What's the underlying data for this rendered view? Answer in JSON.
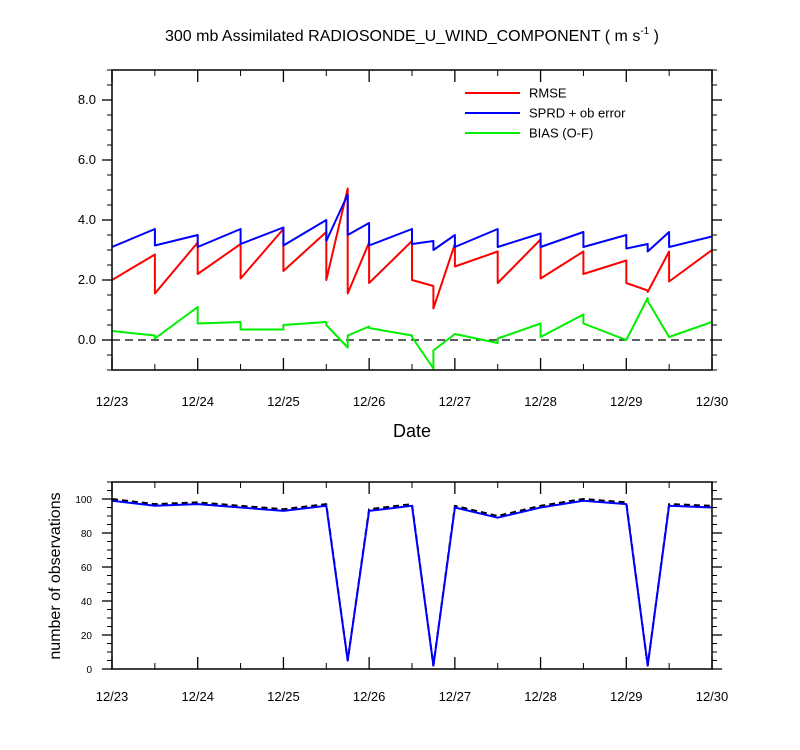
{
  "chart_data": [
    {
      "type": "line",
      "title": "300 mb Assimilated RADIOSONDE_U_WIND_COMPONENT ( m s",
      "title_sup": "-1",
      "title_end": " )",
      "xlabel": "Date",
      "ylabel": "",
      "xlim": [
        0,
        7
      ],
      "ylim": [
        -1.0,
        9.0
      ],
      "x_ticks": [
        0,
        1,
        2,
        3,
        4,
        5,
        6,
        7
      ],
      "x_tick_labels": [
        "12/23",
        "12/24",
        "12/25",
        "12/26",
        "12/27",
        "12/28",
        "12/29",
        "12/30"
      ],
      "y_ticks": [
        0,
        2,
        4,
        6,
        8
      ],
      "y_tick_labels": [
        "0.0",
        "2.0",
        "4.0",
        "6.0",
        "8.0"
      ],
      "zero_line": "dashed",
      "legend_position": "top-right",
      "series": [
        {
          "name": "RMSE",
          "color": "#ff0000",
          "points": [
            [
              0,
              2.0
            ],
            [
              0.5,
              2.85
            ],
            [
              0.5,
              1.55
            ],
            [
              1.0,
              3.25
            ],
            [
              1.0,
              2.2
            ],
            [
              1.5,
              3.2
            ],
            [
              1.5,
              2.05
            ],
            [
              2.0,
              3.7
            ],
            [
              2.0,
              2.3
            ],
            [
              2.5,
              3.6
            ],
            [
              2.5,
              2.0
            ],
            [
              2.75,
              5.05
            ],
            [
              2.75,
              1.55
            ],
            [
              3.0,
              3.25
            ],
            [
              3.0,
              1.9
            ],
            [
              3.5,
              3.3
            ],
            [
              3.5,
              2.0
            ],
            [
              3.75,
              1.8
            ],
            [
              3.75,
              1.05
            ],
            [
              4.0,
              3.2
            ],
            [
              4.0,
              2.45
            ],
            [
              4.5,
              2.95
            ],
            [
              4.5,
              1.9
            ],
            [
              5.0,
              3.35
            ],
            [
              5.0,
              2.05
            ],
            [
              5.5,
              2.95
            ],
            [
              5.5,
              2.2
            ],
            [
              6.0,
              2.65
            ],
            [
              6.0,
              1.9
            ],
            [
              6.25,
              1.65
            ],
            [
              6.25,
              1.6
            ],
            [
              6.5,
              2.95
            ],
            [
              6.5,
              1.95
            ],
            [
              7.0,
              3.0
            ]
          ]
        },
        {
          "name": "SPRD + ob error",
          "color": "#0000ff",
          "points": [
            [
              0,
              3.1
            ],
            [
              0.5,
              3.7
            ],
            [
              0.5,
              3.15
            ],
            [
              1.0,
              3.5
            ],
            [
              1.0,
              3.1
            ],
            [
              1.5,
              3.7
            ],
            [
              1.5,
              3.2
            ],
            [
              2.0,
              3.75
            ],
            [
              2.0,
              3.15
            ],
            [
              2.5,
              4.0
            ],
            [
              2.5,
              3.3
            ],
            [
              2.75,
              4.85
            ],
            [
              2.75,
              3.5
            ],
            [
              3.0,
              3.9
            ],
            [
              3.0,
              3.15
            ],
            [
              3.5,
              3.7
            ],
            [
              3.5,
              3.2
            ],
            [
              3.75,
              3.3
            ],
            [
              3.75,
              3.0
            ],
            [
              4.0,
              3.5
            ],
            [
              4.0,
              3.1
            ],
            [
              4.5,
              3.7
            ],
            [
              4.5,
              3.1
            ],
            [
              5.0,
              3.55
            ],
            [
              5.0,
              3.1
            ],
            [
              5.5,
              3.6
            ],
            [
              5.5,
              3.1
            ],
            [
              6.0,
              3.5
            ],
            [
              6.0,
              3.05
            ],
            [
              6.25,
              3.2
            ],
            [
              6.25,
              2.95
            ],
            [
              6.5,
              3.6
            ],
            [
              6.5,
              3.1
            ],
            [
              7.0,
              3.45
            ]
          ]
        },
        {
          "name": "BIAS (O-F)",
          "color": "#00ee00",
          "points": [
            [
              0,
              0.3
            ],
            [
              0.5,
              0.15
            ],
            [
              0.5,
              0.05
            ],
            [
              1.0,
              1.1
            ],
            [
              1.0,
              0.55
            ],
            [
              1.5,
              0.6
            ],
            [
              1.5,
              0.35
            ],
            [
              2.0,
              0.35
            ],
            [
              2.0,
              0.5
            ],
            [
              2.5,
              0.6
            ],
            [
              2.5,
              0.5
            ],
            [
              2.75,
              -0.25
            ],
            [
              2.75,
              0.15
            ],
            [
              3.0,
              0.45
            ],
            [
              3.0,
              0.4
            ],
            [
              3.5,
              0.15
            ],
            [
              3.5,
              0.1
            ],
            [
              3.75,
              -0.95
            ],
            [
              3.75,
              -0.35
            ],
            [
              4.0,
              0.2
            ],
            [
              4.0,
              0.2
            ],
            [
              4.5,
              -0.1
            ],
            [
              4.5,
              0.05
            ],
            [
              5.0,
              0.55
            ],
            [
              5.0,
              0.1
            ],
            [
              5.5,
              0.85
            ],
            [
              5.5,
              0.55
            ],
            [
              6.0,
              0.0
            ],
            [
              6.0,
              0.0
            ],
            [
              6.25,
              1.4
            ],
            [
              6.25,
              1.3
            ],
            [
              6.5,
              0.1
            ],
            [
              6.5,
              0.1
            ],
            [
              7.0,
              0.6
            ]
          ]
        }
      ]
    },
    {
      "type": "line",
      "title": "",
      "xlabel": "",
      "ylabel": "number of observations",
      "xlim": [
        0,
        7
      ],
      "ylim": [
        0,
        110
      ],
      "x_ticks": [
        0,
        1,
        2,
        3,
        4,
        5,
        6,
        7
      ],
      "x_tick_labels": [
        "12/23",
        "12/24",
        "12/25",
        "12/26",
        "12/27",
        "12/28",
        "12/29",
        "12/30"
      ],
      "y_ticks": [
        0,
        20,
        40,
        60,
        80,
        100
      ],
      "y_tick_labels": [
        "0",
        "20",
        "40",
        "60",
        "80",
        "100"
      ],
      "series": [
        {
          "style": "dashed",
          "color": "#000000",
          "points": [
            [
              0,
              100
            ],
            [
              0.5,
              97
            ],
            [
              1.0,
              98
            ],
            [
              2.0,
              94
            ],
            [
              2.5,
              97
            ],
            [
              2.75,
              5
            ],
            [
              3.0,
              94
            ],
            [
              3.5,
              97
            ],
            [
              3.75,
              2
            ],
            [
              4.0,
              96
            ],
            [
              4.5,
              90
            ],
            [
              5.0,
              96
            ],
            [
              5.5,
              100
            ],
            [
              6.0,
              98
            ],
            [
              6.25,
              2
            ],
            [
              6.5,
              97
            ],
            [
              7.0,
              96
            ]
          ]
        },
        {
          "style": "solid",
          "color": "#0000ff",
          "points": [
            [
              0,
              99
            ],
            [
              0.5,
              96
            ],
            [
              1.0,
              97
            ],
            [
              2.0,
              93
            ],
            [
              2.5,
              96
            ],
            [
              2.75,
              5
            ],
            [
              3.0,
              93
            ],
            [
              3.5,
              96
            ],
            [
              3.75,
              2
            ],
            [
              4.0,
              95
            ],
            [
              4.5,
              89
            ],
            [
              5.0,
              95
            ],
            [
              5.5,
              99
            ],
            [
              6.0,
              97
            ],
            [
              6.25,
              2
            ],
            [
              6.5,
              96
            ],
            [
              7.0,
              95
            ]
          ]
        }
      ]
    }
  ]
}
